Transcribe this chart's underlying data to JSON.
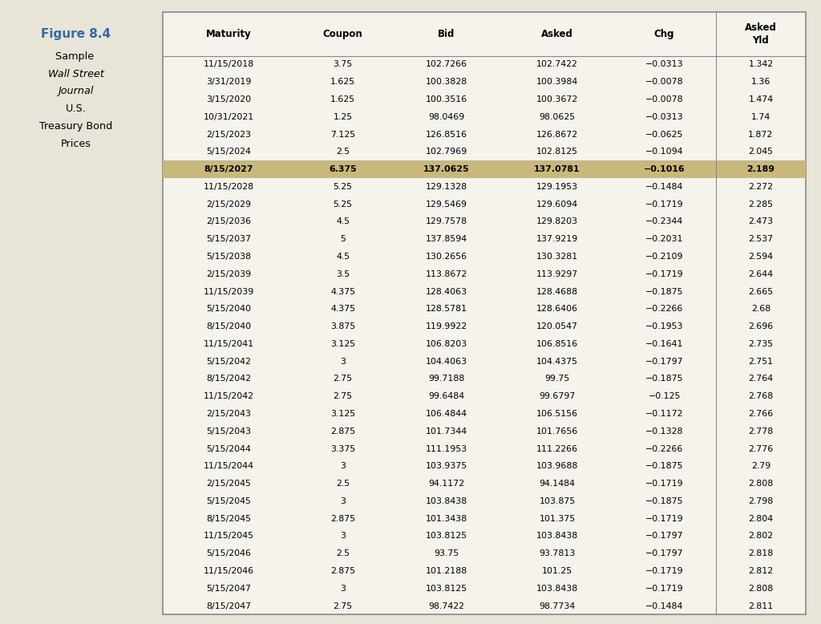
{
  "figure_label": "Figure 8.4",
  "figure_label_color": "#2e6da4",
  "background_color": "#e8e4d8",
  "table_bg_color": "#f5f3ec",
  "table_border_color": "#888888",
  "highlight_color": "#c8b87a",
  "highlight_row_index": 6,
  "columns": [
    "Maturity",
    "Coupon",
    "Bid",
    "Asked",
    "Chg",
    "Asked\nYld"
  ],
  "col_props": [
    0.185,
    0.135,
    0.155,
    0.155,
    0.145,
    0.125
  ],
  "rows": [
    [
      "11/15/2018",
      "3.75",
      "102.7266",
      "102.7422",
      "−0.0313",
      "1.342"
    ],
    [
      "3/31/2019",
      "1.625",
      "100.3828",
      "100.3984",
      "−0.0078",
      "1.36"
    ],
    [
      "3/15/2020",
      "1.625",
      "100.3516",
      "100.3672",
      "−0.0078",
      "1.474"
    ],
    [
      "10/31/2021",
      "1.25",
      "98.0469",
      "98.0625",
      "−0.0313",
      "1.74"
    ],
    [
      "2/15/2023",
      "7.125",
      "126.8516",
      "126.8672",
      "−0.0625",
      "1.872"
    ],
    [
      "5/15/2024",
      "2.5",
      "102.7969",
      "102.8125",
      "−0.1094",
      "2.045"
    ],
    [
      "8/15/2027",
      "6.375",
      "137.0625",
      "137.0781",
      "−0.1016",
      "2.189"
    ],
    [
      "11/15/2028",
      "5.25",
      "129.1328",
      "129.1953",
      "−0.1484",
      "2.272"
    ],
    [
      "2/15/2029",
      "5.25",
      "129.5469",
      "129.6094",
      "−0.1719",
      "2.285"
    ],
    [
      "2/15/2036",
      "4.5",
      "129.7578",
      "129.8203",
      "−0.2344",
      "2.473"
    ],
    [
      "5/15/2037",
      "5",
      "137.8594",
      "137.9219",
      "−0.2031",
      "2.537"
    ],
    [
      "5/15/2038",
      "4.5",
      "130.2656",
      "130.3281",
      "−0.2109",
      "2.594"
    ],
    [
      "2/15/2039",
      "3.5",
      "113.8672",
      "113.9297",
      "−0.1719",
      "2.644"
    ],
    [
      "11/15/2039",
      "4.375",
      "128.4063",
      "128.4688",
      "−0.1875",
      "2.665"
    ],
    [
      "5/15/2040",
      "4.375",
      "128.5781",
      "128.6406",
      "−0.2266",
      "2.68"
    ],
    [
      "8/15/2040",
      "3.875",
      "119.9922",
      "120.0547",
      "−0.1953",
      "2.696"
    ],
    [
      "11/15/2041",
      "3.125",
      "106.8203",
      "106.8516",
      "−0.1641",
      "2.735"
    ],
    [
      "5/15/2042",
      "3",
      "104.4063",
      "104.4375",
      "−0.1797",
      "2.751"
    ],
    [
      "8/15/2042",
      "2.75",
      "99.7188",
      "99.75",
      "−0.1875",
      "2.764"
    ],
    [
      "11/15/2042",
      "2.75",
      "99.6484",
      "99.6797",
      "−0.125",
      "2.768"
    ],
    [
      "2/15/2043",
      "3.125",
      "106.4844",
      "106.5156",
      "−0.1172",
      "2.766"
    ],
    [
      "5/15/2043",
      "2.875",
      "101.7344",
      "101.7656",
      "−0.1328",
      "2.778"
    ],
    [
      "5/15/2044",
      "3.375",
      "111.1953",
      "111.2266",
      "−0.2266",
      "2.776"
    ],
    [
      "11/15/2044",
      "3",
      "103.9375",
      "103.9688",
      "−0.1875",
      "2.79"
    ],
    [
      "2/15/2045",
      "2.5",
      "94.1172",
      "94.1484",
      "−0.1719",
      "2.808"
    ],
    [
      "5/15/2045",
      "3",
      "103.8438",
      "103.875",
      "−0.1875",
      "2.798"
    ],
    [
      "8/15/2045",
      "2.875",
      "101.3438",
      "101.375",
      "−0.1719",
      "2.804"
    ],
    [
      "11/15/2045",
      "3",
      "103.8125",
      "103.8438",
      "−0.1797",
      "2.802"
    ],
    [
      "5/15/2046",
      "2.5",
      "93.75",
      "93.7813",
      "−0.1797",
      "2.818"
    ],
    [
      "11/15/2046",
      "2.875",
      "101.2188",
      "101.25",
      "−0.1719",
      "2.812"
    ],
    [
      "5/15/2047",
      "3",
      "103.8125",
      "103.8438",
      "−0.1719",
      "2.808"
    ],
    [
      "8/15/2047",
      "2.75",
      "98.7422",
      "98.7734",
      "−0.1484",
      "2.811"
    ]
  ]
}
